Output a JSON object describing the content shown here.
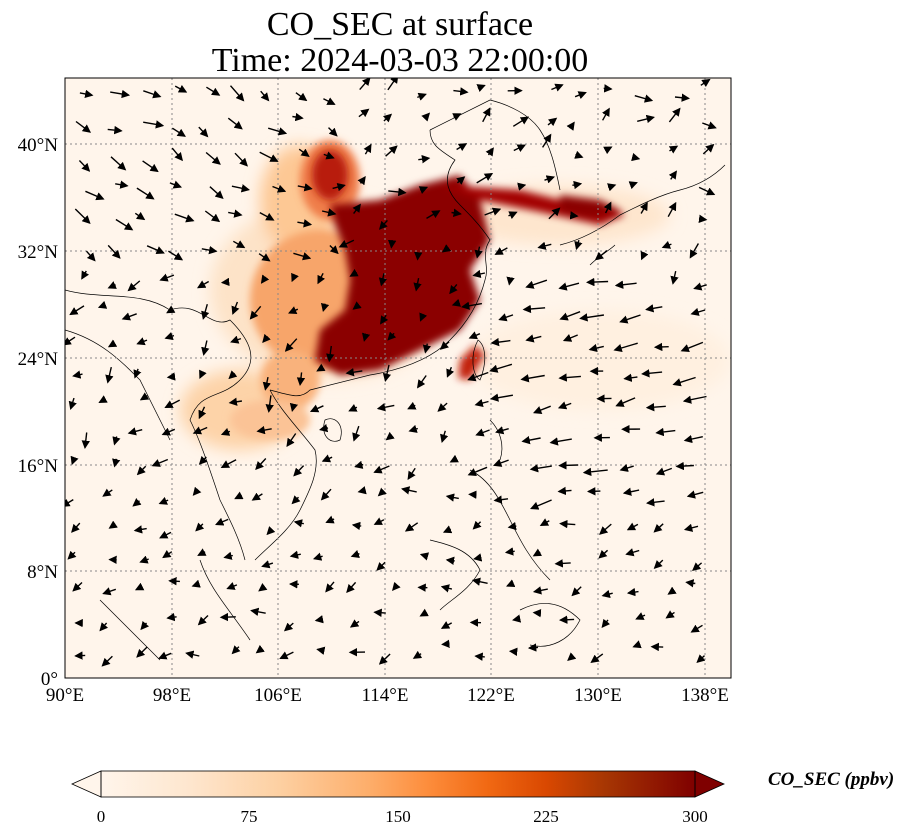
{
  "title": {
    "line1": "CO_SEC at surface",
    "line2": "Time: 2024-03-03 22:00:00"
  },
  "map": {
    "x_ticks": [
      "90°E",
      "98°E",
      "106°E",
      "114°E",
      "122°E",
      "130°E",
      "138°E"
    ],
    "y_ticks": [
      "0°",
      "8°N",
      "16°N",
      "24°N",
      "32°N",
      "40°N"
    ],
    "lon_range": [
      90,
      140
    ],
    "lat_range": [
      0,
      45
    ],
    "gridlines": true
  },
  "colorbar": {
    "label": "CO_SEC (ppbv)",
    "ticks": [
      "0",
      "75",
      "150",
      "225",
      "300"
    ],
    "range": [
      0,
      300
    ],
    "colormap_stops": [
      "#fff5eb",
      "#fee6ce",
      "#fdd0a2",
      "#fdae6b",
      "#fd8d3c",
      "#f16913",
      "#d94801",
      "#a63603",
      "#7f2704",
      "#7a0000"
    ],
    "extend": "both"
  }
}
